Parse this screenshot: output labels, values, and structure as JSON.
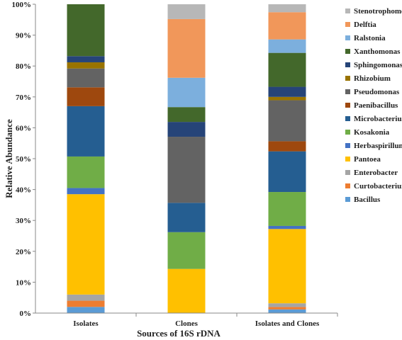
{
  "chart_data": {
    "type": "bar",
    "stacked": true,
    "normalized": true,
    "title": "",
    "xlabel": "Sources of 16S rDNA",
    "ylabel": "Relative Abundance",
    "ylim": [
      0,
      100
    ],
    "yticks": [
      "0%",
      "10%",
      "20%",
      "30%",
      "40%",
      "50%",
      "60%",
      "70%",
      "80%",
      "90%",
      "100%"
    ],
    "categories": [
      "Isolates",
      "Clones",
      "Isolates and Clones"
    ],
    "legend_position": "right",
    "grid": false,
    "series": [
      {
        "name": "Bacillus",
        "color": "#5B9BD5",
        "values": [
          2.0,
          0.0,
          1.2
        ]
      },
      {
        "name": "Curtobacterium",
        "color": "#ED7D31",
        "values": [
          2.0,
          0.0,
          0.8
        ]
      },
      {
        "name": "Enterobacter",
        "color": "#A5A5A5",
        "values": [
          2.0,
          0.0,
          1.2
        ]
      },
      {
        "name": "Pantoea",
        "color": "#FFC000",
        "values": [
          32.5,
          14.3,
          24.3
        ]
      },
      {
        "name": "Herbaspirillum",
        "color": "#4472C4",
        "values": [
          2.0,
          0.0,
          1.0
        ]
      },
      {
        "name": "Kosakonia",
        "color": "#70AD47",
        "values": [
          10.2,
          11.9,
          11.1
        ]
      },
      {
        "name": "Microbacterium",
        "color": "#255E91",
        "values": [
          16.3,
          9.5,
          13.3
        ]
      },
      {
        "name": "Paenibacillus",
        "color": "#9E480E",
        "values": [
          6.1,
          0.0,
          3.3
        ]
      },
      {
        "name": "Pseudomonas",
        "color": "#636363",
        "values": [
          6.1,
          21.4,
          13.4
        ]
      },
      {
        "name": "Rhizobium",
        "color": "#997300",
        "values": [
          2.0,
          0.0,
          1.1
        ]
      },
      {
        "name": "Sphingomonas",
        "color": "#264478",
        "values": [
          2.0,
          4.8,
          3.3
        ]
      },
      {
        "name": "Xanthomonas",
        "color": "#43682B",
        "values": [
          16.8,
          4.8,
          11.1
        ]
      },
      {
        "name": "Ralstonia",
        "color": "#7CAFDD",
        "values": [
          0.0,
          9.5,
          4.4
        ]
      },
      {
        "name": "Delftia",
        "color": "#F1975A",
        "values": [
          0.0,
          19.0,
          8.9
        ]
      },
      {
        "name": "Stenotrophomonas",
        "color": "#B7B7B7",
        "values": [
          0.0,
          4.8,
          2.6
        ]
      }
    ]
  }
}
